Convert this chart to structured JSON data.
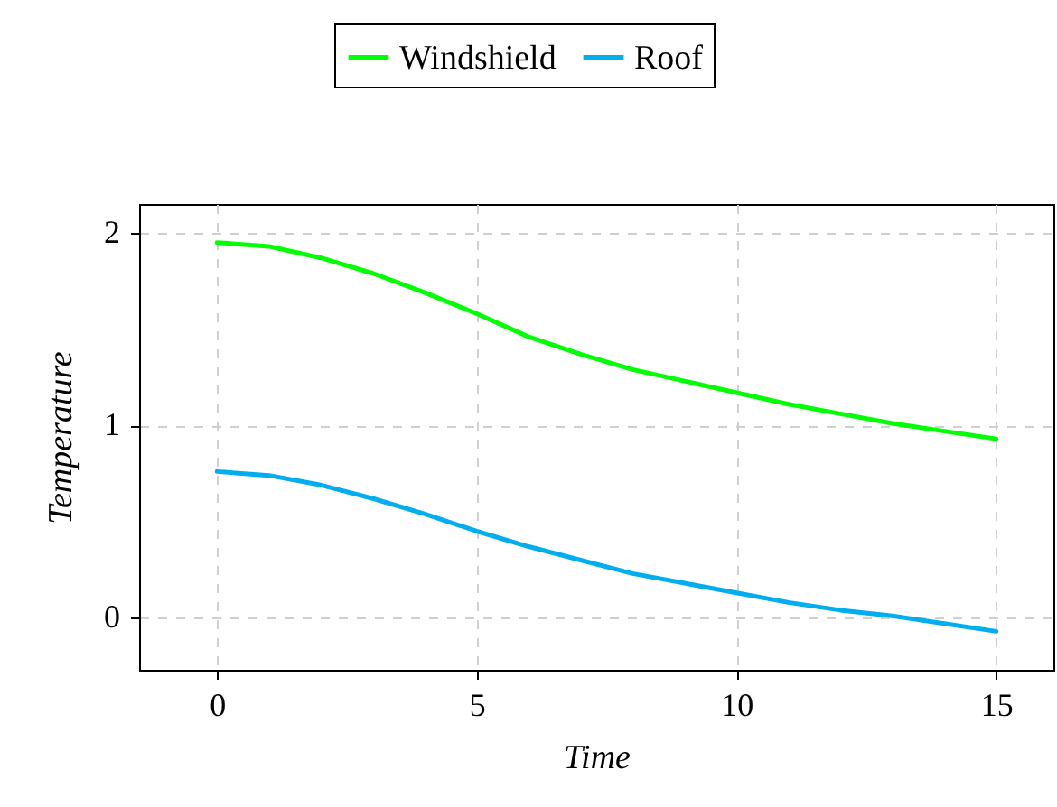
{
  "chart_data": {
    "type": "line",
    "xlabel": "Time",
    "ylabel": "Temperature",
    "x": [
      0,
      1,
      2,
      3,
      4,
      5,
      6,
      7,
      8,
      9,
      10,
      11,
      12,
      13,
      14,
      15
    ],
    "series": [
      {
        "name": "Windshield",
        "color": "#00ff00",
        "values": [
          1.95,
          1.93,
          1.87,
          1.79,
          1.69,
          1.58,
          1.46,
          1.37,
          1.29,
          1.23,
          1.17,
          1.11,
          1.06,
          1.01,
          0.97,
          0.93
        ]
      },
      {
        "name": "Roof",
        "color": "#00aeef",
        "values": [
          0.76,
          0.74,
          0.69,
          0.62,
          0.54,
          0.45,
          0.37,
          0.3,
          0.23,
          0.18,
          0.13,
          0.08,
          0.04,
          0.01,
          -0.03,
          -0.07
        ]
      }
    ],
    "xlim": [
      -1.5,
      16.1
    ],
    "ylim": [
      -0.27,
      2.15
    ],
    "xticks": [
      0,
      5,
      10,
      15
    ],
    "yticks": [
      0,
      1,
      2
    ],
    "grid": true,
    "legend": "top",
    "marker": "none",
    "line_style": "solid"
  }
}
